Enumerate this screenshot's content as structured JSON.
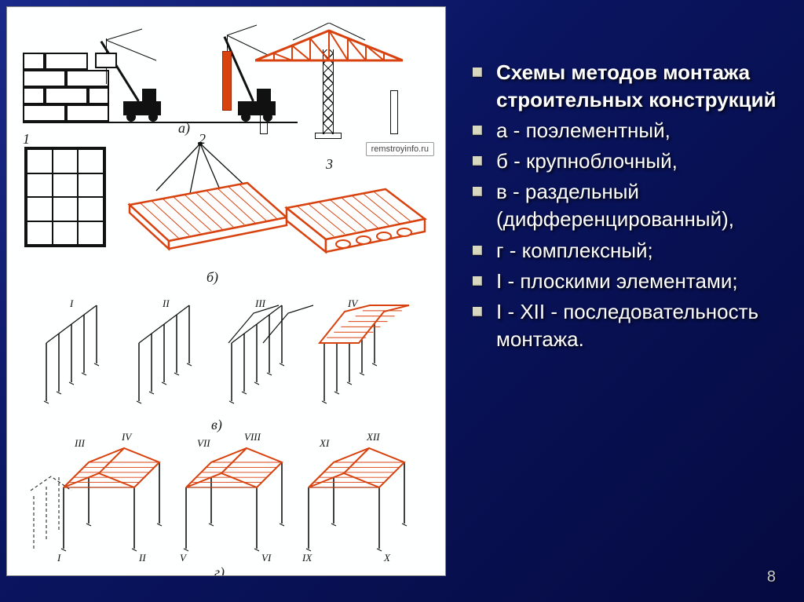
{
  "watermark": "remstroyinfo.ru",
  "page_number": "8",
  "bullets": [
    {
      "text": "Схемы методов монтажа строительных конструкций",
      "bold": true
    },
    {
      "text": "а - поэлементный,"
    },
    {
      "text": "б - крупноблочный,"
    },
    {
      "text": "в - раздельный (дифференцированный),"
    },
    {
      "text": "г - комплексный;"
    },
    {
      "text": "I - плоскими элементами;"
    },
    {
      "text": "I - XII - последовательность монтажа."
    }
  ],
  "labels": {
    "a": "а)",
    "b": "б)",
    "v": "в)",
    "g": "г)",
    "n1": "1",
    "n2": "2",
    "n3": "3"
  },
  "style": {
    "accent_color": "#d8420f",
    "accent_dark": "#a23000",
    "line_color": "#111111",
    "bg_left": "#feffff",
    "bg_gradient_from": "#1a2a8a",
    "bg_gradient_to": "#050a40",
    "bullet_box": "#d8d8c0",
    "text_color": "#ffffff",
    "title_fontsize": 26,
    "label_fontsize": 18,
    "roman_fontsize": 13
  },
  "sec_v": {
    "romans": [
      "I",
      "II",
      "III",
      "IV"
    ],
    "cols_per_bay": 5,
    "bays": 4
  },
  "sec_g": {
    "bays": 3,
    "romans_roof": [
      [
        "III",
        "IV"
      ],
      [
        "VII",
        "VIII"
      ],
      [
        "XI",
        "XII"
      ]
    ],
    "romans_cols": [
      [
        "I",
        "II"
      ],
      [
        "V",
        "VI"
      ],
      [
        "IX",
        "X"
      ]
    ]
  }
}
